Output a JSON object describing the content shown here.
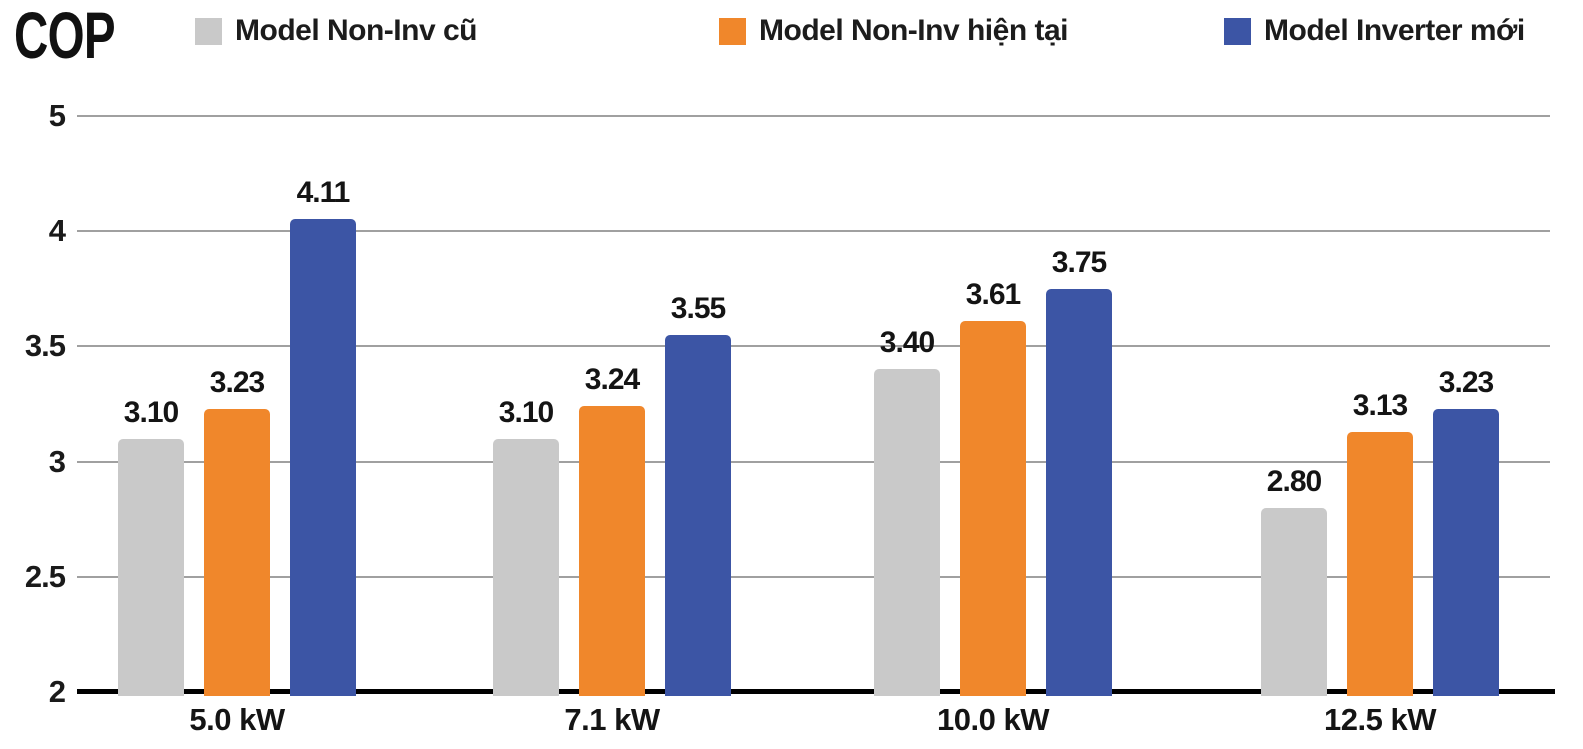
{
  "title": "COP",
  "legend": [
    {
      "label": "Model Non-Inv cũ",
      "color": "#c9c9c9"
    },
    {
      "label": "Model Non-Inv hiện tại",
      "color": "#f0872b"
    },
    {
      "label": "Model Inverter mới",
      "color": "#3c55a5"
    }
  ],
  "chart_data": {
    "type": "bar",
    "title": "COP",
    "categories": [
      "5.0 kW",
      "7.1 kW",
      "10.0 kW",
      "12.5 kW"
    ],
    "series": [
      {
        "name": "Model Non-Inv cũ",
        "color": "#c9c9c9",
        "values": [
          3.1,
          3.1,
          3.4,
          2.8
        ],
        "labels": [
          "3.10",
          "3.10",
          "3.40",
          "2.80"
        ]
      },
      {
        "name": "Model Non-Inv hiện tại",
        "color": "#f0872b",
        "values": [
          3.23,
          3.24,
          3.61,
          3.13
        ],
        "labels": [
          "3.23",
          "3.24",
          "3.61",
          "3.13"
        ]
      },
      {
        "name": "Model Inverter mới",
        "color": "#3c55a5",
        "values": [
          4.11,
          3.55,
          3.75,
          3.23
        ],
        "labels": [
          "4.11",
          "3.55",
          "3.75",
          "3.23"
        ]
      }
    ],
    "ylabel": "COP",
    "ylim": [
      2,
      5
    ],
    "y_ticks": [
      5,
      4,
      3.5,
      3,
      2.5,
      2
    ],
    "y_tick_labels": [
      "5",
      "4",
      "3.5",
      "3",
      "2.5",
      "2"
    ],
    "axis_note": "y-axis nonlinear: segment 4 to 5 is compressed into one gridline gap (same spacing as each 0.5 step below 4)",
    "grid": true,
    "legend_position": "top",
    "colors": {
      "grid": "#a0a0a0",
      "baseline": "#000000",
      "label_text": "#141414"
    }
  }
}
